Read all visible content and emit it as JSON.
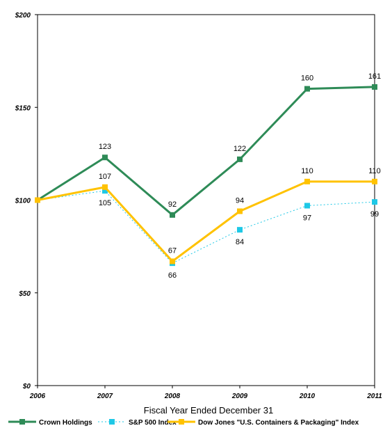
{
  "chart_data": {
    "type": "line",
    "title": "",
    "xlabel": "Fiscal Year Ended December 31",
    "ylabel": "",
    "x": [
      "2006",
      "2007",
      "2008",
      "2009",
      "2010",
      "2011"
    ],
    "ylim": [
      0,
      200
    ],
    "yticks": [
      0,
      50,
      100,
      150,
      200
    ],
    "ytick_labels": [
      "$0",
      "$50",
      "$100",
      "$150",
      "$200"
    ],
    "grid": false,
    "legend_position": "bottom",
    "series": [
      {
        "name": "Crown Holdings",
        "values": [
          100,
          123,
          92,
          122,
          160,
          161
        ],
        "labels": [
          "",
          "123",
          "92",
          "122",
          "160",
          "161"
        ],
        "label_pos": [
          "above",
          "above",
          "above",
          "above",
          "above",
          "above"
        ],
        "color": "#2e8b57",
        "dashed": false,
        "stroke_width": 3
      },
      {
        "name": "S&P 500 Index",
        "values": [
          100,
          105,
          66,
          84,
          97,
          99
        ],
        "labels": [
          "",
          "105",
          "66",
          "84",
          "97",
          "99"
        ],
        "label_pos": [
          "below",
          "below",
          "below",
          "below",
          "below",
          "below"
        ],
        "color": "#1ec8e6",
        "dashed": true,
        "stroke_width": 1
      },
      {
        "name": "Dow Jones \"U.S. Containers & Packaging\" Index",
        "values": [
          100,
          107,
          67,
          94,
          110,
          110
        ],
        "labels": [
          "",
          "107",
          "67",
          "94",
          "110",
          "110"
        ],
        "label_pos": [
          "above",
          "above",
          "above",
          "above",
          "above",
          "above"
        ],
        "color": "#ffc200",
        "dashed": false,
        "stroke_width": 3
      }
    ]
  }
}
